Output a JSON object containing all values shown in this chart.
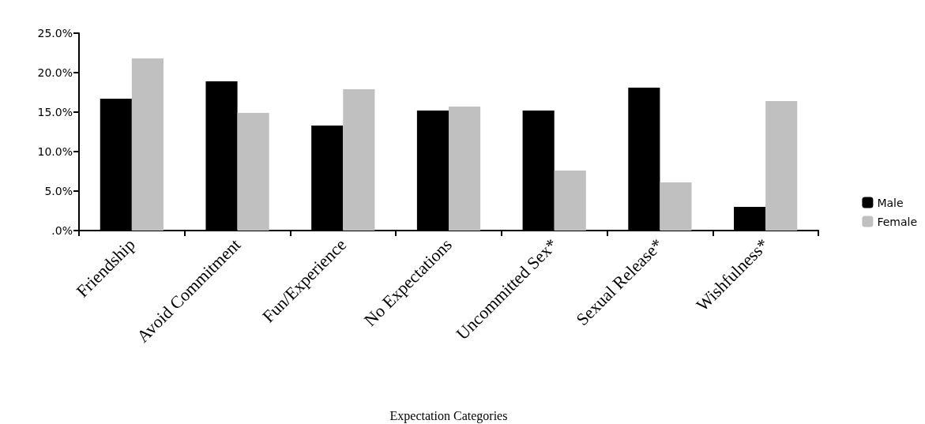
{
  "chart_data": {
    "type": "bar",
    "xlabel": "Expectation Categories",
    "categories": [
      "Friendship",
      "Avoid Commitment",
      "Fun/Experience",
      "No Expectations",
      "Uncommitted Sex*",
      "Sexual Release*",
      "Wishfulness*"
    ],
    "series": [
      {
        "name": "Male",
        "color": "#000000",
        "values": [
          16.7,
          18.9,
          13.3,
          15.2,
          15.2,
          18.1,
          3.0
        ]
      },
      {
        "name": "Female",
        "color": "#c0c0c0",
        "values": [
          21.8,
          14.9,
          17.9,
          15.7,
          7.6,
          6.1,
          16.4
        ]
      }
    ],
    "ylim": [
      0,
      25
    ],
    "yticks": [
      {
        "value": 0,
        "label": ".0%"
      },
      {
        "value": 5,
        "label": "5.0%"
      },
      {
        "value": 10,
        "label": "10.0%"
      },
      {
        "value": 15,
        "label": "15.0%"
      },
      {
        "value": 20,
        "label": "20.0%"
      },
      {
        "value": 25,
        "label": "25.0%"
      }
    ],
    "grid": false,
    "legend": "right"
  }
}
